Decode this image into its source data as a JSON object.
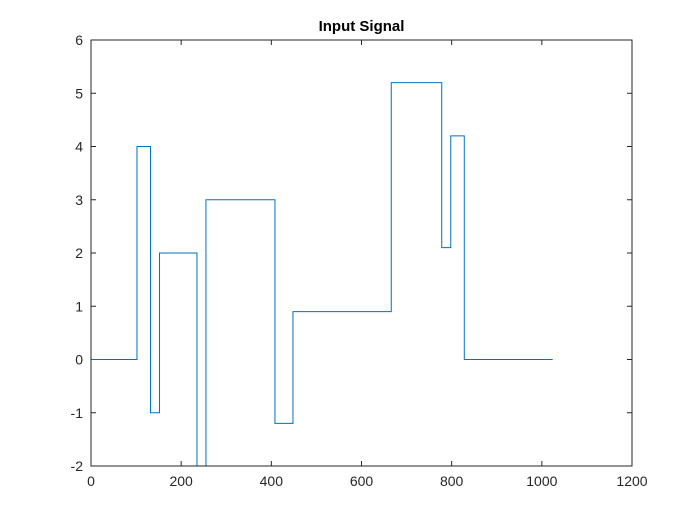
{
  "chart_data": {
    "type": "line",
    "title": "Input Signal",
    "xlabel": "",
    "ylabel": "",
    "xlim": [
      0,
      1200
    ],
    "ylim": [
      -2,
      6
    ],
    "xticks": [
      0,
      200,
      400,
      600,
      800,
      1000,
      1200
    ],
    "yticks": [
      -2,
      -1,
      0,
      1,
      2,
      3,
      4,
      5,
      6
    ],
    "grid": false,
    "legend": "none",
    "series": [
      {
        "color": "#0072BD",
        "step": true,
        "x": [
          0,
          102,
          102,
          132,
          132,
          152,
          152,
          235,
          235,
          255,
          255,
          408,
          408,
          448,
          448,
          666,
          666,
          778,
          778,
          798,
          798,
          828,
          828,
          1024
        ],
        "y": [
          0,
          0,
          4,
          4,
          -1,
          -1,
          2,
          2,
          -2,
          -2,
          3,
          3,
          -1.2,
          -1.2,
          0.9,
          0.9,
          5.2,
          5.2,
          2.1,
          2.1,
          4.2,
          4.2,
          0,
          0
        ]
      }
    ]
  }
}
